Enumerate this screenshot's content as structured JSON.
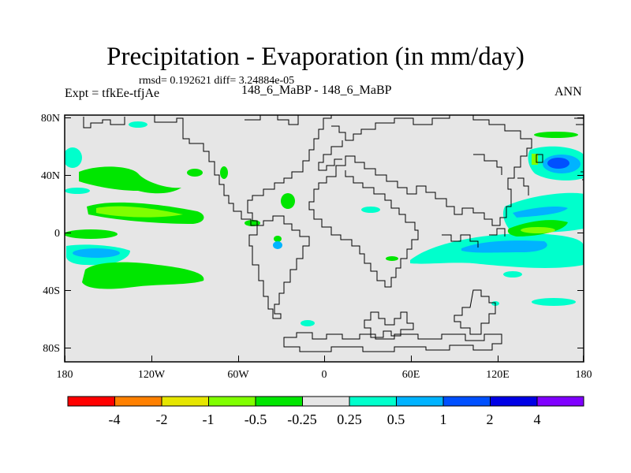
{
  "title": "Precipitation - Evaporation (in mm/day)",
  "stats": "rmsd= 0.192621  diff= 3.24884e-05",
  "experiment": "Expt = tfkEe-tfjAe",
  "comparison": "148_6_MaBP - 148_6_MaBP",
  "season": "ANN",
  "axes": {
    "lat_ticks": [
      "80N",
      "40N",
      "0",
      "40S",
      "80S"
    ],
    "lon_ticks": [
      "180",
      "120W",
      "60W",
      "0",
      "60E",
      "120E",
      "180"
    ]
  },
  "colorbar": {
    "colors": [
      "#ff0000",
      "#ff8000",
      "#e6e600",
      "#80ff00",
      "#00e600",
      "#e6e6e6",
      "#00ffcc",
      "#00b3ff",
      "#0050ff",
      "#0000e6",
      "#8000ff"
    ],
    "labels": [
      "-4",
      "-2",
      "-1",
      "-0.5",
      "-0.25",
      "0.25",
      "0.5",
      "1",
      "2",
      "4"
    ]
  },
  "chart_data": {
    "type": "heatmap",
    "title": "Precipitation - Evaporation (in mm/day)",
    "xlim": [
      -180,
      180
    ],
    "ylim": [
      -90,
      90
    ],
    "background_level": "-0.25 to 0.25",
    "anomaly_regions": [
      {
        "lon": [
          -180,
          -162
        ],
        "lat": [
          42,
          54
        ],
        "level": "0.5"
      },
      {
        "lon": [
          -178,
          -158
        ],
        "lat": [
          22,
          28
        ],
        "level": "0.5"
      },
      {
        "lon": [
          -168,
          -128
        ],
        "lat": [
          38,
          50
        ],
        "level": "-0.25"
      },
      {
        "lon": [
          -165,
          -115
        ],
        "lat": [
          10,
          24
        ],
        "level": "-0.5"
      },
      {
        "lon": [
          -180,
          -145
        ],
        "lat": [
          -4,
          4
        ],
        "level": "-0.25"
      },
      {
        "lon": [
          -180,
          -135
        ],
        "lat": [
          -20,
          -8
        ],
        "level": "0.5"
      },
      {
        "lon": [
          -172,
          -155
        ],
        "lat": [
          -16,
          -10
        ],
        "level": "1"
      },
      {
        "lon": [
          -165,
          -120
        ],
        "lat": [
          -40,
          -28
        ],
        "level": "-0.25"
      },
      {
        "lon": [
          -140,
          -130
        ],
        "lat": [
          80,
          85
        ],
        "level": "0.25"
      },
      {
        "lon": [
          -28,
          -16
        ],
        "lat": [
          10,
          16
        ],
        "level": "-0.25"
      },
      {
        "lon": [
          -32,
          -28
        ],
        "lat": [
          -10,
          -4
        ],
        "level": "0.5"
      },
      {
        "lon": [
          145,
          178
        ],
        "lat": [
          35,
          55
        ],
        "level": "1"
      },
      {
        "lon": [
          158,
          170
        ],
        "lat": [
          40,
          48
        ],
        "level": "2"
      },
      {
        "lon": [
          125,
          180
        ],
        "lat": [
          10,
          30
        ],
        "level": "0.5"
      },
      {
        "lon": [
          130,
          155
        ],
        "lat": [
          0,
          6
        ],
        "level": "-0.5"
      },
      {
        "lon": [
          150,
          180
        ],
        "lat": [
          63,
          70
        ],
        "level": "-0.25"
      },
      {
        "lon": [
          70,
          180
        ],
        "lat": [
          -18,
          0
        ],
        "level": "0.5"
      },
      {
        "lon": [
          100,
          140
        ],
        "lat": [
          -12,
          -4
        ],
        "level": "1"
      },
      {
        "lon": [
          140,
          160
        ],
        "lat": [
          -40,
          -35
        ],
        "level": "0.5"
      }
    ]
  }
}
